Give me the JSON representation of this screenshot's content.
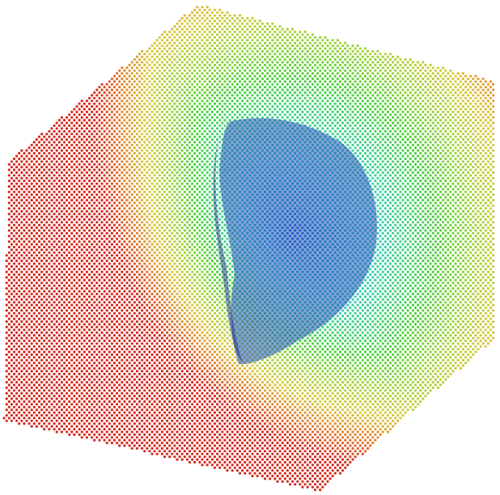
{
  "scene": {
    "subject": "point-cloud-volume",
    "background_color": "#ffffff",
    "colormap": [
      "#1a1fb8",
      "#1e5cd6",
      "#2aa0d8",
      "#33c8c8",
      "#3fd08a",
      "#4ccf3a",
      "#9ed23a",
      "#d8c83a",
      "#e07a2e",
      "#d12a1f"
    ],
    "inner_surface_color": "#1f56b8"
  }
}
